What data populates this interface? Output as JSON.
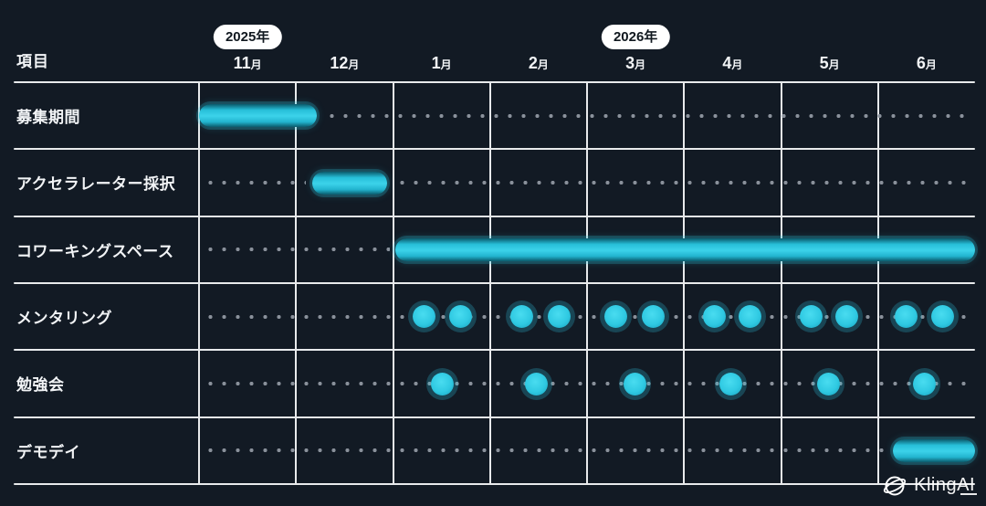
{
  "header": {
    "items_label": "項目"
  },
  "watermark": {
    "brand": "KlingAI"
  },
  "chart_data": {
    "type": "gantt",
    "title": "",
    "months": [
      "11月",
      "12月",
      "1月",
      "2月",
      "3月",
      "4月",
      "5月",
      "6月"
    ],
    "years": [
      {
        "label": "2025年",
        "month_index": 0
      },
      {
        "label": "2026年",
        "month_index": 4
      }
    ],
    "axis_note": "positions are in month units, 0 = start of 11月, 8 = end of 6月",
    "rows": [
      {
        "label": "募集期間",
        "bars": [
          {
            "start": 0.0,
            "end": 1.21
          }
        ],
        "events": [],
        "idle": [
          [
            1.3,
            7.95
          ]
        ]
      },
      {
        "label": "アクセラレーター採択",
        "bars": [
          {
            "start": 1.17,
            "end": 1.94
          }
        ],
        "events": [],
        "idle": [
          [
            0.05,
            1.1
          ],
          [
            2.02,
            7.95
          ]
        ]
      },
      {
        "label": "コワーキングスペース",
        "bars": [
          {
            "start": 2.02,
            "end": 8.0
          }
        ],
        "events": [],
        "idle": [
          [
            0.05,
            1.97
          ]
        ]
      },
      {
        "label": "メンタリング",
        "bars": [],
        "events": [
          2.32,
          2.7,
          3.33,
          3.71,
          4.3,
          4.68,
          5.31,
          5.68,
          6.31,
          6.68,
          7.29,
          7.67
        ],
        "idle": [
          [
            0.05,
            7.95
          ]
        ]
      },
      {
        "label": "勉強会",
        "bars": [],
        "events": [
          2.51,
          3.48,
          4.49,
          5.48,
          6.49,
          7.48
        ],
        "idle": [
          [
            0.05,
            7.95
          ]
        ]
      },
      {
        "label": "デモデイ",
        "bars": [
          {
            "start": 7.15,
            "end": 8.0
          }
        ],
        "events": [],
        "idle": [
          [
            0.05,
            7.08
          ]
        ]
      }
    ],
    "colors": {
      "background": "#121a24",
      "grid": "#e8eaec",
      "bar": "#2fc9e2",
      "idle_dot": "#8a919b",
      "pill_bg": "#ffffff",
      "pill_text": "#10181f",
      "text": "#f2f4f6"
    },
    "legend_position": "none",
    "grid": true
  }
}
